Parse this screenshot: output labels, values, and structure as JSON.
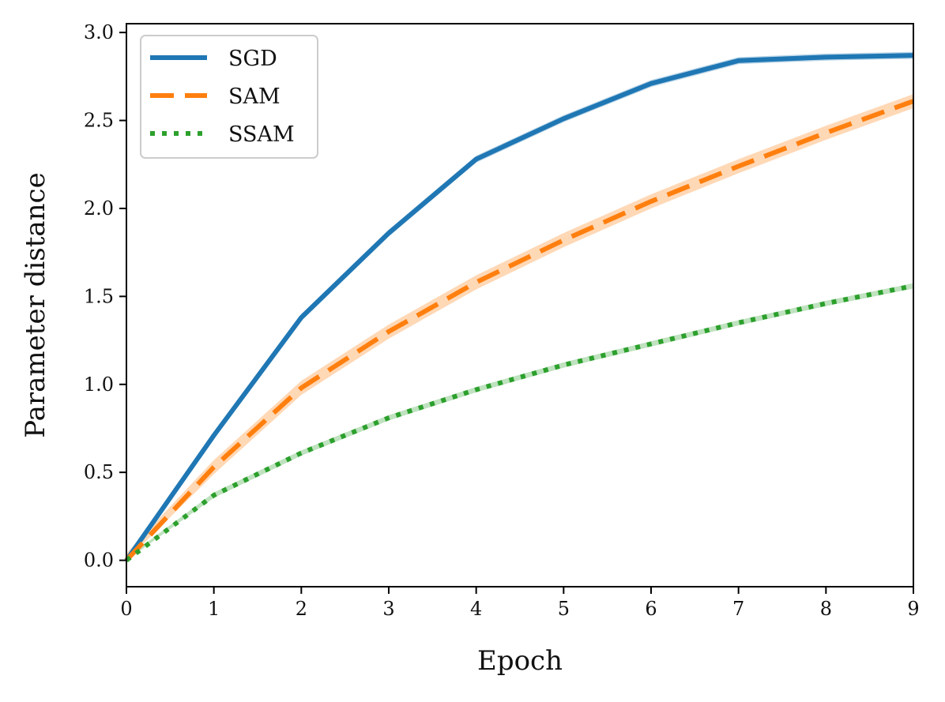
{
  "chart_data": {
    "type": "line",
    "title": "",
    "xlabel": "Epoch",
    "ylabel": "Parameter distance",
    "xlim": [
      0,
      9
    ],
    "ylim": [
      -0.15,
      3.05
    ],
    "xticks": [
      "0",
      "1",
      "2",
      "3",
      "4",
      "5",
      "6",
      "7",
      "8",
      "9"
    ],
    "yticks": [
      "0.0",
      "0.5",
      "1.0",
      "1.5",
      "2.0",
      "2.5",
      "3.0"
    ],
    "x": [
      0,
      1,
      2,
      3,
      4,
      5,
      6,
      7,
      8,
      9
    ],
    "legend_position": "top-left",
    "series": [
      {
        "name": "SGD",
        "color": "#1f77b4",
        "style": "solid",
        "band": 0.02,
        "values": [
          0.0,
          0.71,
          1.38,
          1.86,
          2.28,
          2.51,
          2.71,
          2.84,
          2.86,
          2.87
        ]
      },
      {
        "name": "SAM",
        "color": "#ff7f0e",
        "style": "dashed",
        "band": 0.04,
        "values": [
          0.0,
          0.53,
          0.98,
          1.3,
          1.58,
          1.82,
          2.04,
          2.24,
          2.43,
          2.61
        ]
      },
      {
        "name": "SSAM",
        "color": "#2ca02c",
        "style": "dotted",
        "band": 0.015,
        "values": [
          0.0,
          0.37,
          0.61,
          0.81,
          0.97,
          1.11,
          1.23,
          1.35,
          1.46,
          1.56
        ]
      }
    ]
  }
}
